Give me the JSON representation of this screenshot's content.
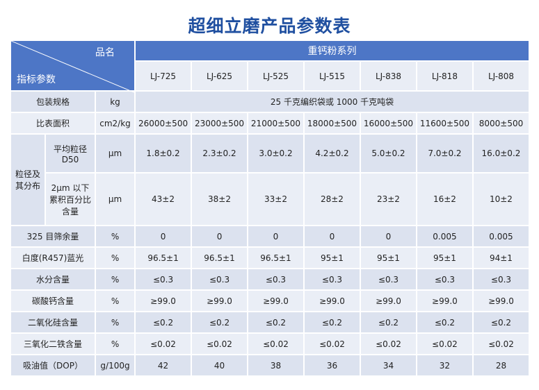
{
  "title": "超细立磨产品参数表",
  "table": {
    "header": {
      "corner_top": "品名",
      "corner_bottom": "指标参数",
      "group": "重钙粉系列",
      "models": [
        "LJ-725",
        "LJ-625",
        "LJ-525",
        "LJ-515",
        "LJ-838",
        "LJ-818",
        "LJ-808"
      ]
    },
    "rows": [
      {
        "param": "包装规格",
        "unit": "kg",
        "values": [
          "25 千克编织袋或 1000 千克吨袋"
        ]
      },
      {
        "param": "比表面积",
        "unit": "cm2/kg",
        "values": [
          "26000±500",
          "23000±500",
          "21000±500",
          "18000±500",
          "16000±500",
          "11600±500",
          "8000±500"
        ]
      },
      {
        "group": "粒径及其分布",
        "subrows": [
          {
            "param": "平均粒径 D50",
            "unit": "μm",
            "values": [
              "1.8±0.2",
              "2.3±0.2",
              "3.0±0.2",
              "4.2±0.2",
              "5.0±0.2",
              "7.0±0.2",
              "16.0±0.2"
            ]
          },
          {
            "param": "2μm 以下累积百分比含量",
            "unit": "μm",
            "values": [
              "43±2",
              "38±2",
              "33±2",
              "28±2",
              "23±2",
              "16±2",
              "10±2"
            ]
          }
        ]
      },
      {
        "param": "325 目筛余量",
        "unit": "%",
        "values": [
          "0",
          "0",
          "0",
          "0",
          "0",
          "0.005",
          "0.005"
        ]
      },
      {
        "param": "白度(R457)蓝光",
        "unit": "%",
        "values": [
          "96.5±1",
          "96.5±1",
          "96.5±1",
          "95±1",
          "95±1",
          "95±1",
          "94±1"
        ]
      },
      {
        "param": "水分含量",
        "unit": "%",
        "values": [
          "≤0.3",
          "≤0.3",
          "≤0.3",
          "≤0.3",
          "≤0.3",
          "≤0.3",
          "≤0.3"
        ]
      },
      {
        "param": "碳酸钙含量",
        "unit": "%",
        "values": [
          "≥99.0",
          "≥99.0",
          "≥99.0",
          "≥99.0",
          "≥99.0",
          "≥99.0",
          "≥99.0"
        ]
      },
      {
        "param": "二氧化硅含量",
        "unit": "%",
        "values": [
          "≤0.2",
          "≤0.2",
          "≤0.2",
          "≤0.2",
          "≤0.2",
          "≤0.2",
          "≤0.2"
        ]
      },
      {
        "param": "三氧化二铁含量",
        "unit": "%",
        "values": [
          "≤0.02",
          "≤0.02",
          "≤0.02",
          "≤0.02",
          "≤0.02",
          "≤0.02",
          "≤0.02"
        ]
      },
      {
        "param": "吸油值（DOP）",
        "unit": "g/100g",
        "values": [
          "42",
          "40",
          "38",
          "36",
          "34",
          "32",
          "28"
        ]
      }
    ]
  }
}
